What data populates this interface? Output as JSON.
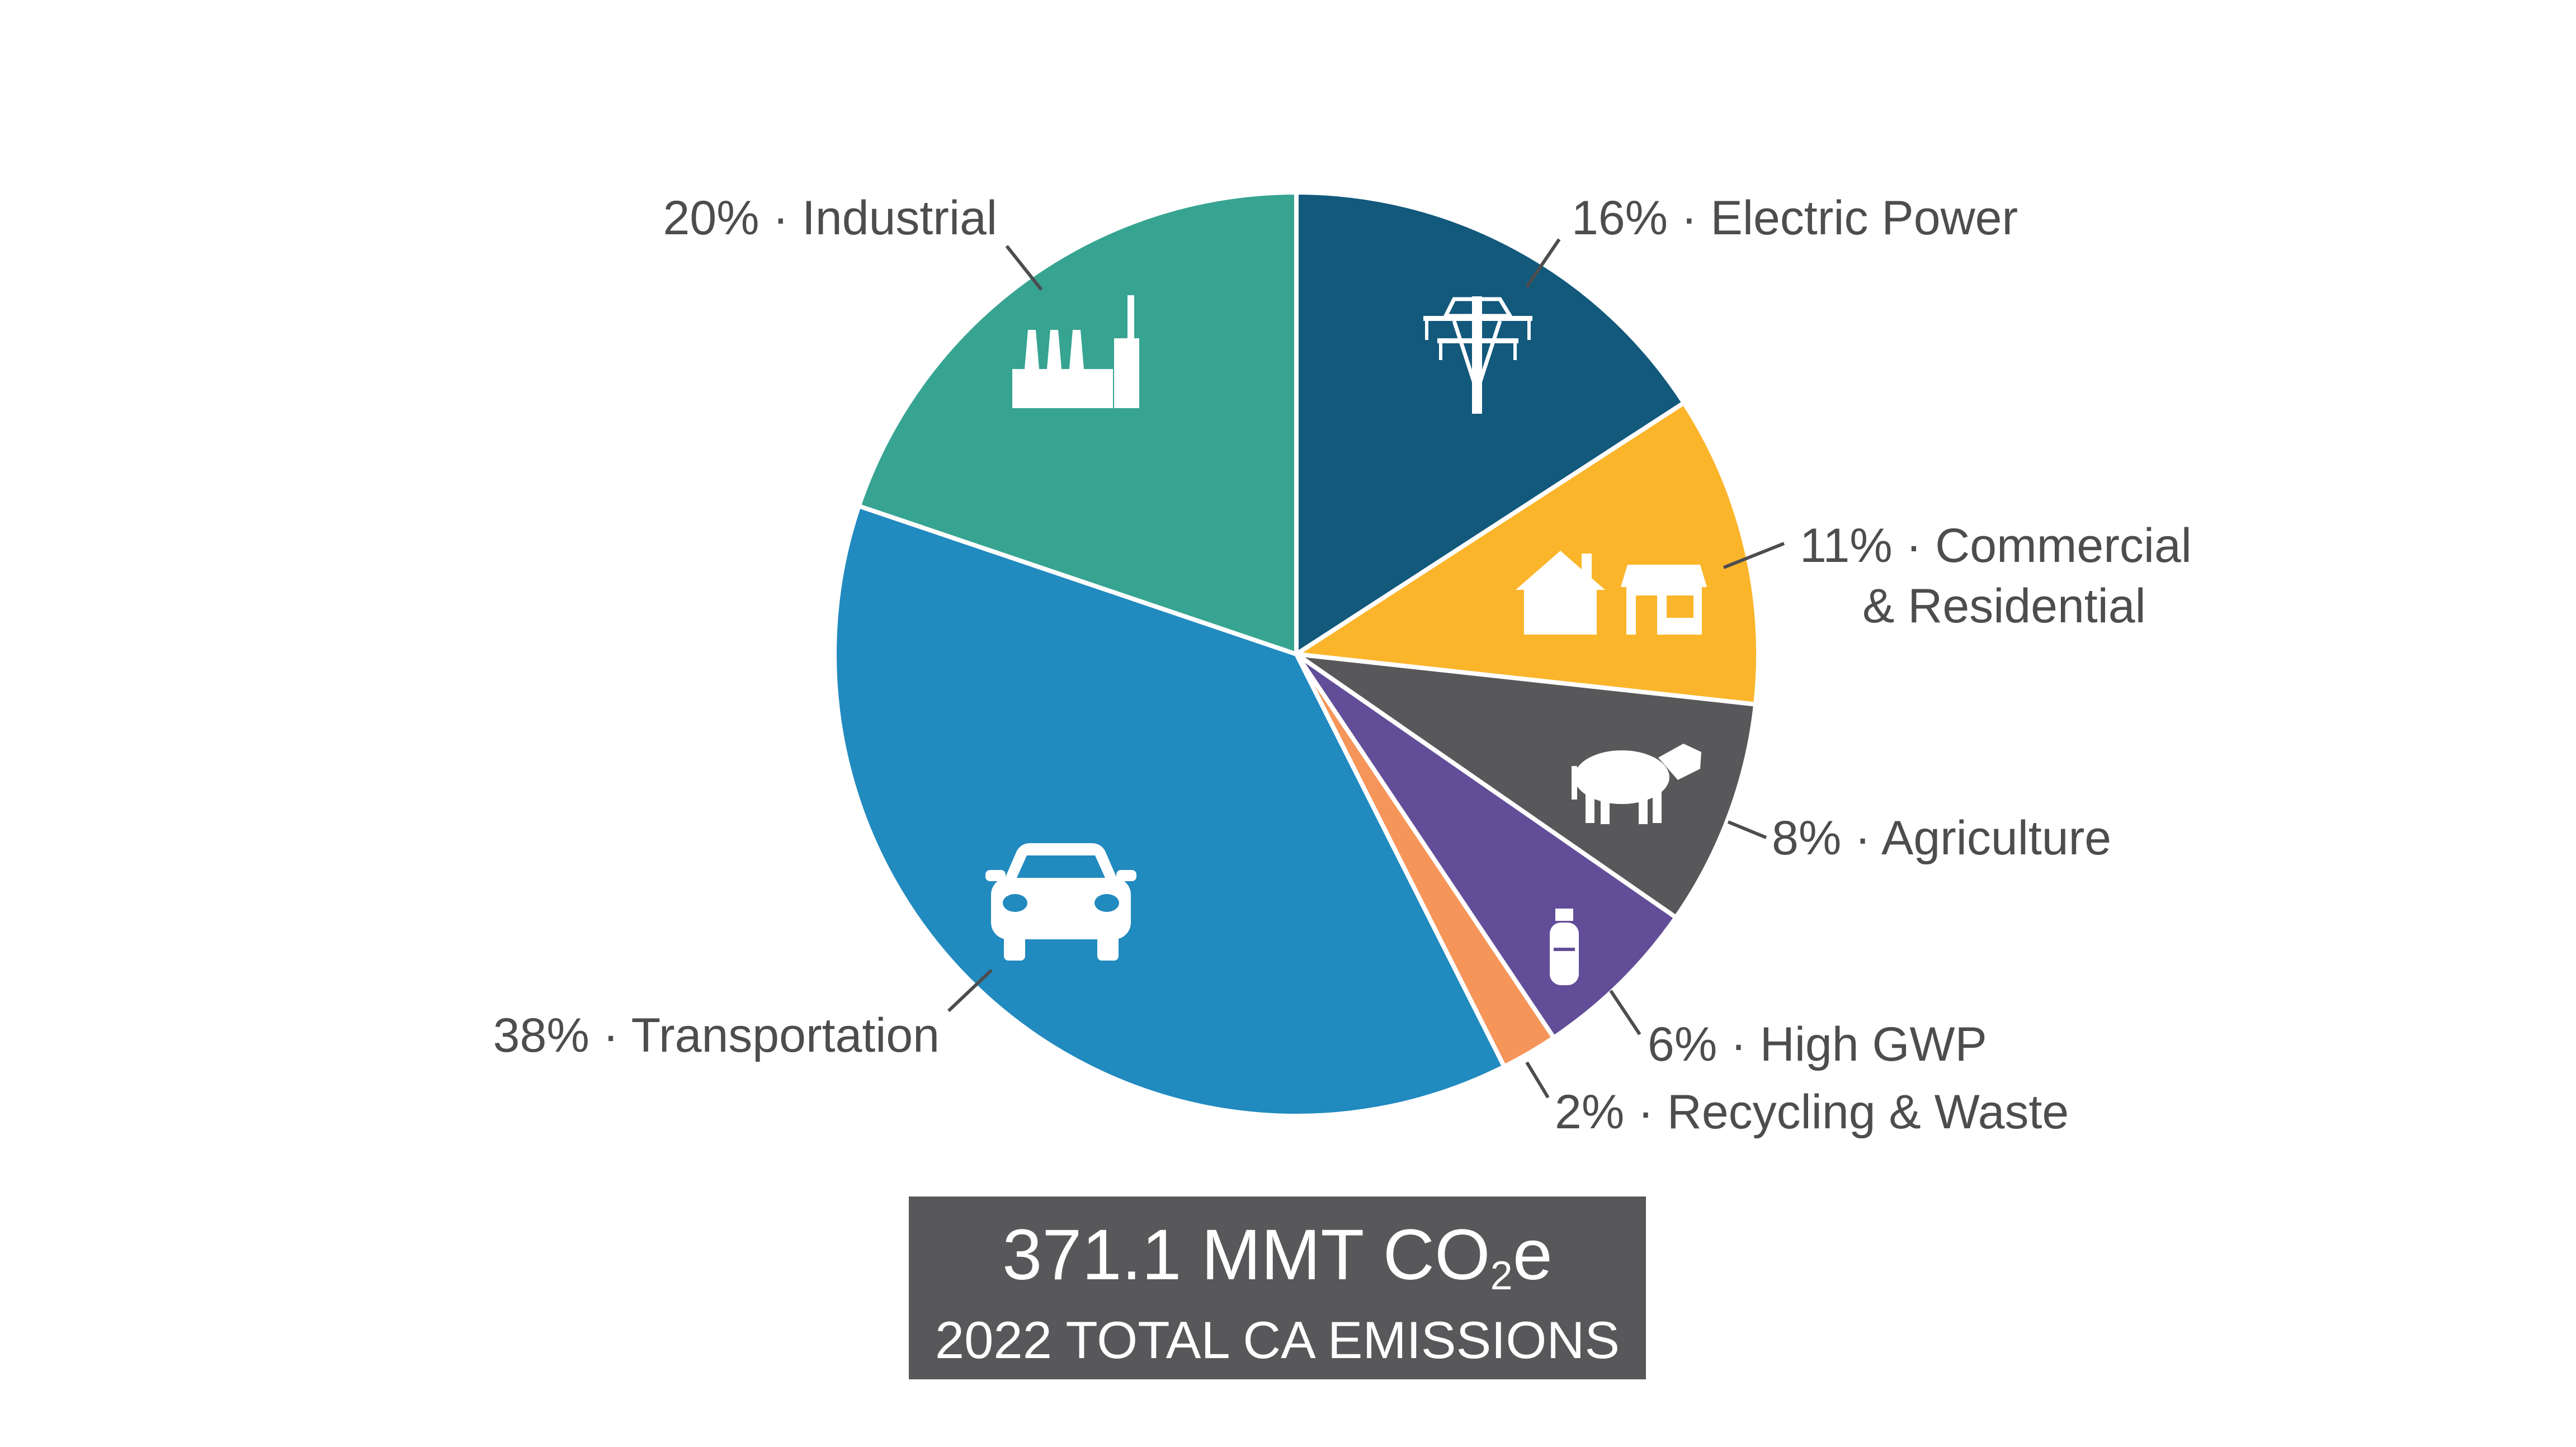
{
  "chart_data": {
    "type": "pie",
    "slices": [
      {
        "name": "Electric Power",
        "value": 16,
        "label": "16% · Electric Power",
        "color": "#12597c",
        "icon": "power-tower-icon"
      },
      {
        "name": "Commercial & Residential",
        "value": 11,
        "label_lines": [
          "11% · Commercial",
          "& Residential"
        ],
        "color": "#fbb52a",
        "icon": "house-and-shop-icon"
      },
      {
        "name": "Agriculture",
        "value": 8,
        "label": "8% · Agriculture",
        "color": "#58585a",
        "icon": "cow-icon"
      },
      {
        "name": "High GWP",
        "value": 6,
        "label": "6% · High GWP",
        "color": "#624e98",
        "icon": "gas-cylinder-icon"
      },
      {
        "name": "Recycling & Waste",
        "value": 2,
        "label": "2% · Recycling & Waste",
        "color": "#f6955a",
        "icon": ""
      },
      {
        "name": "Transportation",
        "value": 38,
        "label": "38% · Transportation",
        "color": "#218abf",
        "icon": "car-icon"
      },
      {
        "name": "Industrial",
        "value": 20,
        "label": "20% · Industrial",
        "color": "#36a491",
        "icon": "factory-icon"
      }
    ],
    "units": "%"
  },
  "total": {
    "value_text": "371.1 MMT CO",
    "subscript": "2",
    "suffix": "e",
    "caption": "2022 TOTAL CA EMISSIONS"
  }
}
